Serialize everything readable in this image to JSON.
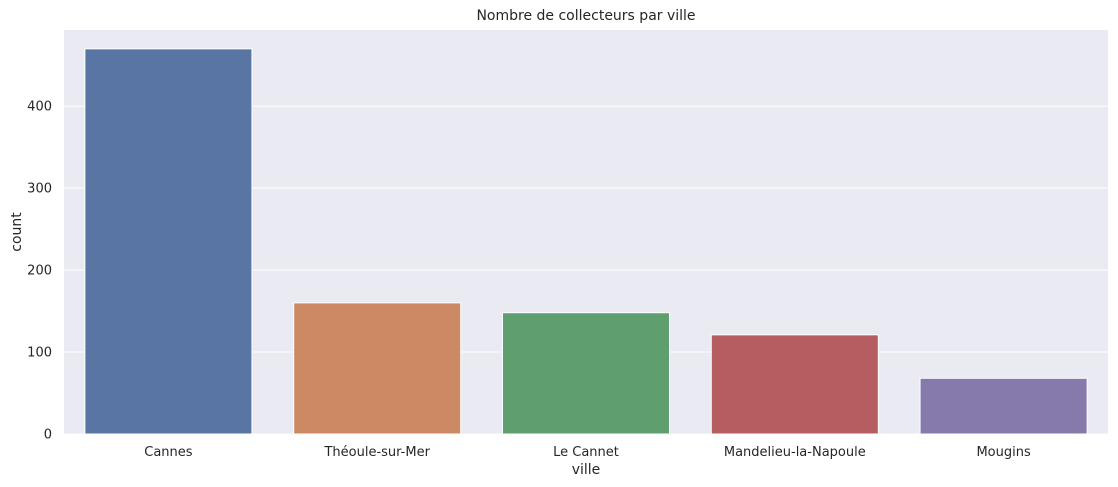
{
  "chart_data": {
    "type": "bar",
    "title": "Nombre de collecteurs par ville",
    "xlabel": "ville",
    "ylabel": "count",
    "categories": [
      "Cannes",
      "Théoule-sur-Mer",
      "Le Cannet",
      "Mandelieu-la-Napoule",
      "Mougins"
    ],
    "values": [
      470,
      160,
      148,
      121,
      68
    ],
    "ylim": [
      0,
      493
    ],
    "yticks": [
      0,
      100,
      200,
      300,
      400
    ],
    "grid": true,
    "colors": [
      "#5875a4",
      "#cc8963",
      "#5f9e6e",
      "#b55d60",
      "#857aab"
    ],
    "background": "#eaeaf2"
  }
}
